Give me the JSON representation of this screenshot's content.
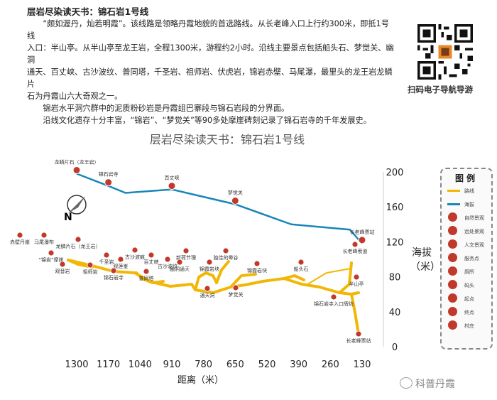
{
  "intro": {
    "title": "层岩尽染读天书：锦石岩1号线",
    "lines": [
      "　　“颇如渥丹，灿若明霞”。该线路是领略丹霞地貌的首选路线。从长老峰入口上行约300米，即抵1号线",
      "入口：半山亭。从半山亭至龙王岩，全程1300米，游程约2小时。沿线主要景点包括船头石、梦觉关、幽洞",
      "通天、百丈峡、古沙波纹、普同塔，千圣岩、祖师岩、伏虎岩，锦岩赤壁、马尾瀑，最里头的龙王岩龙鳞片",
      "石为丹霞山六大奇观之一。",
      "　　锦岩水平洞穴群中的泥质粉砂岩是丹霞组巴寨段与锦石岩段的分界面。",
      "　　沿线文化遗存十分丰富，“锦岩”、“梦觉关”等90多处摩崖碑刻记录了锦石岩寺的千年发展史。"
    ]
  },
  "qr_caption": "扫码电子导航导游",
  "chart": {
    "title": "层岩尽染读天书：锦石岩1号线",
    "elev_label": "海拔（米）",
    "x_title": "距离（米）",
    "x_ticks": [
      "1300",
      "1170",
      "1040",
      "910",
      "780",
      "650",
      "520",
      "390",
      "260",
      "130"
    ],
    "y_ticks": [
      "0",
      "40",
      "80",
      "120",
      "160",
      "200"
    ],
    "compass": "N"
  },
  "chart_data": {
    "type": "line",
    "title": "层岩尽染读天书：锦石岩1号线",
    "xlabel": "距离（米）",
    "ylabel": "海拔（米）",
    "xlim": [
      1300,
      130
    ],
    "ylim": [
      0,
      200
    ],
    "series": [
      {
        "name": "海拔",
        "color": "#1a86b8",
        "x": [
          1300,
          1170,
          1100,
          910,
          650,
          420,
          300,
          180,
          130
        ],
        "y": [
          198,
          184,
          176,
          180,
          163,
          140,
          137,
          134,
          118
        ]
      }
    ],
    "points": [
      {
        "x": 1300,
        "y": 198,
        "label": "龙鳞片石（龙王岩）"
      },
      {
        "x": 1170,
        "y": 184,
        "label": "锦石岩寺"
      },
      {
        "x": 910,
        "y": 180,
        "label": "百丈峡"
      },
      {
        "x": 650,
        "y": 163,
        "label": "梦觉关"
      },
      {
        "x": 130,
        "y": 118,
        "label": "长老峰票站"
      }
    ]
  },
  "map_labels": [
    "赤壁丹崖",
    "马尾瀑布",
    "龙鳞片石（龙王岩）",
    "“锦岩”摩崖",
    "观音岩",
    "千圣岩",
    "祖师岩",
    "观莲峯",
    "锦石岩寺",
    "古沙波痕",
    "百丈峡",
    "古沙波纹",
    "普同塔",
    "新荷节理",
    "幽洞通天",
    "锦霞岩块",
    "通天洞",
    "独佳的晕谷",
    "梦觉关",
    "锦霞岩块",
    "船头石",
    "锦石岩寺入口牌坊",
    "半山亭",
    "长老峰索道",
    "长老峰票站"
  ],
  "legend": {
    "title": "图例",
    "items": [
      {
        "icon": "route-line",
        "label": "路线",
        "color": "#f2b705"
      },
      {
        "icon": "elevation-line",
        "label": "海拔",
        "color": "#1a86b8"
      },
      {
        "icon": "scenic-spot-icon",
        "label": "自然景观",
        "color": "#c0392b"
      },
      {
        "icon": "remote-view-icon",
        "label": "远处景观",
        "color": "#c0392b"
      },
      {
        "icon": "culture-icon",
        "label": "人文景观",
        "color": "#c0392b"
      },
      {
        "icon": "service-icon",
        "label": "服务点",
        "color": "#c0392b"
      },
      {
        "icon": "toilet-icon",
        "label": "厕所",
        "color": "#c0392b"
      },
      {
        "icon": "pier-icon",
        "label": "码头",
        "color": "#c0392b"
      },
      {
        "icon": "start-icon",
        "label": "起点",
        "color": "#c0392b"
      },
      {
        "icon": "end-icon",
        "label": "终点",
        "color": "#c0392b"
      },
      {
        "icon": "village-icon",
        "label": "村庄",
        "color": "#c0392b"
      }
    ]
  },
  "watermark": "科普丹霞"
}
